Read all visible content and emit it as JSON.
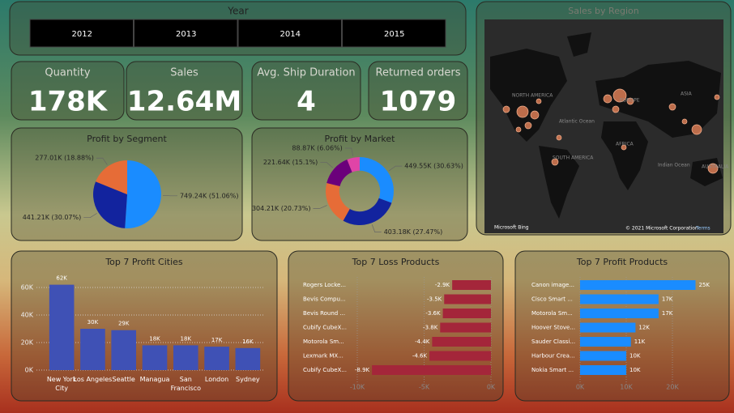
{
  "slicer": {
    "title": "Year",
    "years": [
      "2012",
      "2013",
      "2014",
      "2015"
    ]
  },
  "kpis": [
    {
      "label": "Quantity",
      "value": "178K"
    },
    {
      "label": "Sales",
      "value": "12.64M"
    },
    {
      "label": "Avg. Ship Duration",
      "value": "4"
    },
    {
      "label": "Returned orders",
      "value": "1079"
    }
  ],
  "map": {
    "title": "Sales by Region",
    "labels": [
      "NORTH AMERICA",
      "EUROPE",
      "ASIA",
      "Atlantic Ocean",
      "SOUTH AMERICA",
      "AFRICA",
      "Indian Ocean",
      "AUSTRALIA"
    ],
    "attribution": "Microsoft Bing",
    "copyright": "© 2021 Microsoft Corporation",
    "terms": "Terms"
  },
  "chart_data": [
    {
      "type": "pie",
      "title": "Profit by Segment",
      "values": [
        749.24,
        441.21,
        277.01
      ],
      "value_labels": [
        "749.24K (51.06%)",
        "441.21K (30.07%)",
        "277.01K (18.88%)"
      ],
      "colors": [
        "#1a8cff",
        "#12239e",
        "#e66c37"
      ]
    },
    {
      "type": "pie",
      "hole": 0.6,
      "title": "Profit by Market",
      "values": [
        449.55,
        403.18,
        304.21,
        221.64,
        88.87
      ],
      "value_labels": [
        "449.55K (30.63%)",
        "403.18K (27.47%)",
        "304.21K (20.73%)",
        "221.64K (15.1%)",
        "88.87K (6.06%)"
      ],
      "colors": [
        "#1a8cff",
        "#12239e",
        "#e66c37",
        "#6b007b",
        "#e044a7"
      ]
    },
    {
      "type": "bar",
      "title": "Top 7 Profit Cities",
      "categories": [
        "New York City",
        "Los Angeles",
        "Seattle",
        "Managua",
        "San Francisco",
        "London",
        "Sydney"
      ],
      "values": [
        62,
        30,
        29,
        18,
        18,
        17,
        16
      ],
      "value_labels": [
        "62K",
        "30K",
        "29K",
        "18K",
        "18K",
        "17K",
        "16K"
      ],
      "color": "#3f51b5",
      "ylim": [
        0,
        65
      ],
      "yticks": [
        {
          "value": 0,
          "label": "0K"
        },
        {
          "value": 20,
          "label": "20K"
        },
        {
          "value": 40,
          "label": "40K"
        },
        {
          "value": 60,
          "label": "60K"
        }
      ],
      "grid": true
    },
    {
      "type": "hbar",
      "title": "Top 7 Loss Products",
      "categories": [
        "Rogers Locke...",
        "Bevis Compu...",
        "Bevis Round ...",
        "Cubify CubeX...",
        "Motorola Sm...",
        "Lexmark MX...",
        "Cubify CubeX..."
      ],
      "values": [
        -2.9,
        -3.5,
        -3.6,
        -3.8,
        -4.4,
        -4.6,
        -8.9
      ],
      "value_labels": [
        "-2.9K",
        "-3.5K",
        "-3.6K",
        "-3.8K",
        "-4.4K",
        "-4.6K",
        "-8.9K"
      ],
      "color": "#a4263a",
      "xlim": [
        -10,
        0
      ],
      "xticks": [
        {
          "value": -10,
          "label": "-10K"
        },
        {
          "value": -5,
          "label": "-5K"
        },
        {
          "value": 0,
          "label": "0K"
        }
      ],
      "grid": true
    },
    {
      "type": "hbar",
      "title": "Top 7 Profit Products",
      "categories": [
        "Canon image...",
        "Cisco Smart ...",
        "Motorola Sm...",
        "Hoover Stove...",
        "Sauder Classi...",
        "Harbour Crea...",
        "Nokia Smart ..."
      ],
      "values": [
        25,
        17,
        17,
        12,
        11,
        10,
        10
      ],
      "value_labels": [
        "25K",
        "17K",
        "17K",
        "12K",
        "11K",
        "10K",
        "10K"
      ],
      "color": "#1a8cff",
      "xlim": [
        0,
        25
      ],
      "xticks": [
        {
          "value": 0,
          "label": "0K"
        },
        {
          "value": 10,
          "label": "10K"
        },
        {
          "value": 20,
          "label": "20K"
        }
      ],
      "grid": true
    }
  ]
}
